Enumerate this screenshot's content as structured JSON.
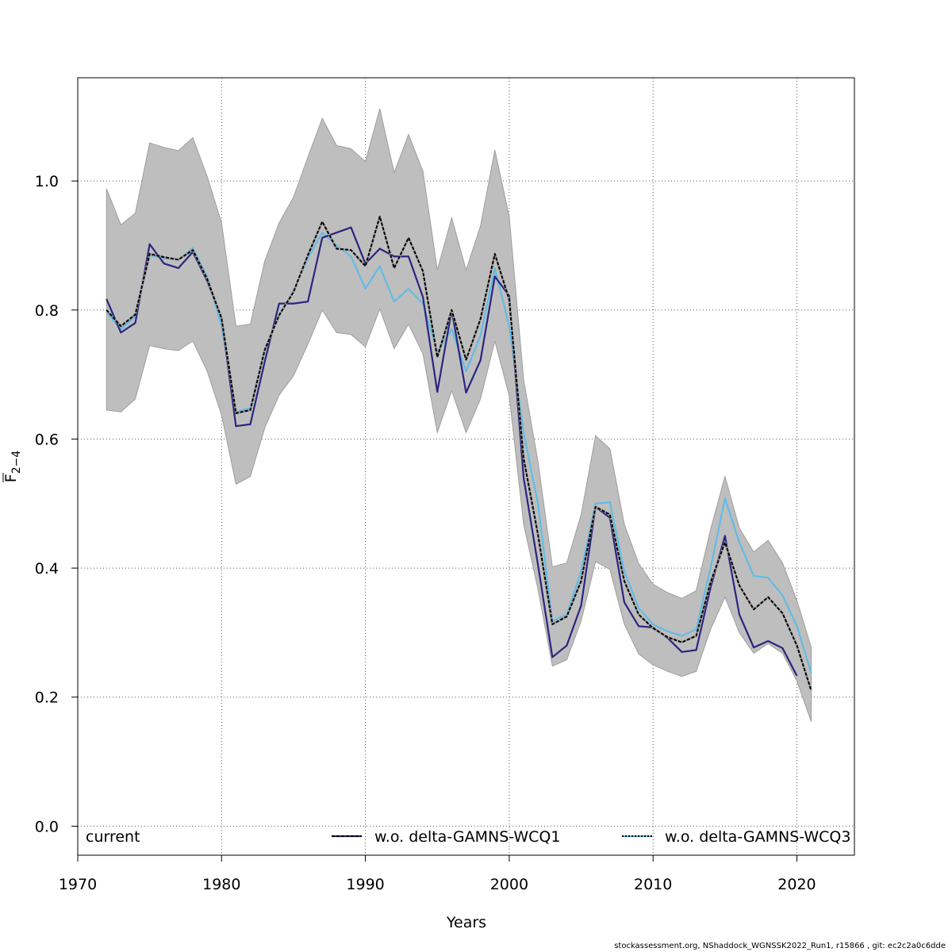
{
  "chart_data": {
    "type": "line",
    "xlabel": "Years",
    "ylabel_main": "F",
    "ylabel_sub": "2−4",
    "xlim": [
      1970,
      2024
    ],
    "ylim": [
      -0.045,
      1.16
    ],
    "xticks": [
      1970,
      1980,
      1990,
      2000,
      2010,
      2020
    ],
    "yticks": [
      0.0,
      0.2,
      0.4,
      0.6,
      0.8,
      1.0
    ],
    "ytick_labels": [
      "0.0",
      "0.2",
      "0.4",
      "0.6",
      "0.8",
      "1.0"
    ],
    "grid": true,
    "legend_position": "bottom",
    "years": [
      1972,
      1973,
      1974,
      1975,
      1976,
      1977,
      1978,
      1979,
      1980,
      1981,
      1982,
      1983,
      1984,
      1985,
      1986,
      1987,
      1988,
      1989,
      1990,
      1991,
      1992,
      1993,
      1994,
      1995,
      1996,
      1997,
      1998,
      1999,
      2000,
      2001,
      2002,
      2003,
      2004,
      2005,
      2006,
      2007,
      2008,
      2009,
      2010,
      2011,
      2012,
      2013,
      2014,
      2015,
      2016,
      2017,
      2018,
      2019,
      2020,
      2021
    ],
    "band": {
      "color": "#bebebe",
      "upper": [
        0.988,
        0.932,
        0.95,
        1.059,
        1.052,
        1.047,
        1.067,
        1.007,
        0.935,
        0.775,
        0.778,
        0.876,
        0.935,
        0.975,
        1.037,
        1.097,
        1.055,
        1.05,
        1.03,
        1.112,
        1.013,
        1.072,
        1.015,
        0.862,
        0.943,
        0.862,
        0.93,
        1.048,
        0.945,
        0.692,
        0.565,
        0.402,
        0.408,
        0.483,
        0.605,
        0.585,
        0.468,
        0.407,
        0.375,
        0.362,
        0.353,
        0.365,
        0.46,
        0.542,
        0.462,
        0.425,
        0.443,
        0.408,
        0.35,
        0.277
      ],
      "lower": [
        0.645,
        0.642,
        0.662,
        0.745,
        0.74,
        0.737,
        0.752,
        0.705,
        0.637,
        0.53,
        0.542,
        0.617,
        0.668,
        0.698,
        0.747,
        0.8,
        0.765,
        0.762,
        0.743,
        0.802,
        0.74,
        0.778,
        0.732,
        0.61,
        0.675,
        0.61,
        0.662,
        0.752,
        0.667,
        0.468,
        0.367,
        0.248,
        0.258,
        0.318,
        0.41,
        0.398,
        0.313,
        0.267,
        0.25,
        0.24,
        0.232,
        0.24,
        0.305,
        0.355,
        0.3,
        0.268,
        0.283,
        0.268,
        0.225,
        0.162
      ]
    },
    "series": [
      {
        "name": "current",
        "color": "#000000",
        "dashed": false,
        "values": [
          0.8,
          0.775,
          0.793,
          0.887,
          0.882,
          0.878,
          0.893,
          0.848,
          0.787,
          0.64,
          0.645,
          0.738,
          0.792,
          0.828,
          0.885,
          0.937,
          0.895,
          0.893,
          0.868,
          0.945,
          0.865,
          0.912,
          0.86,
          0.727,
          0.8,
          0.723,
          0.786,
          0.887,
          0.816,
          0.57,
          0.452,
          0.313,
          0.325,
          0.38,
          0.495,
          0.483,
          0.38,
          0.328,
          0.307,
          0.293,
          0.285,
          0.295,
          0.378,
          0.44,
          0.373,
          0.336,
          0.355,
          0.33,
          0.28,
          0.21
        ]
      },
      {
        "name": "w.o. delta-GAMNS-WCQ1",
        "color": "#2b2580",
        "dashed": false,
        "values": [
          0.817,
          0.765,
          0.78,
          0.902,
          0.872,
          0.865,
          0.89,
          0.845,
          0.788,
          0.62,
          0.623,
          0.72,
          0.81,
          0.81,
          0.813,
          0.912,
          0.92,
          0.928,
          0.872,
          0.895,
          0.883,
          0.883,
          0.82,
          0.673,
          0.8,
          0.672,
          0.722,
          0.852,
          0.822,
          0.54,
          0.405,
          0.262,
          0.28,
          0.342,
          0.495,
          0.478,
          0.347,
          0.31,
          0.308,
          0.292,
          0.27,
          0.273,
          0.37,
          0.45,
          0.328,
          0.277,
          0.287,
          0.276,
          0.233,
          null
        ]
      },
      {
        "name": "w.o. delta-GAMNS-WCQ3",
        "color": "#5cbbe8",
        "dashed": false,
        "values": [
          0.797,
          0.77,
          0.79,
          0.885,
          0.88,
          0.878,
          0.896,
          0.852,
          0.775,
          0.642,
          0.648,
          0.74,
          0.79,
          0.83,
          0.88,
          0.92,
          0.9,
          0.883,
          0.833,
          0.868,
          0.813,
          0.833,
          0.81,
          0.735,
          0.77,
          0.705,
          0.76,
          0.865,
          0.775,
          0.61,
          0.5,
          0.318,
          0.328,
          0.395,
          0.5,
          0.502,
          0.395,
          0.338,
          0.313,
          0.302,
          0.295,
          0.305,
          0.4,
          0.508,
          0.44,
          0.388,
          0.385,
          0.358,
          0.31,
          0.237
        ]
      }
    ],
    "legend": [
      {
        "label": "current",
        "swatch": "none"
      },
      {
        "label": "w.o. delta-GAMNS-WCQ1",
        "swatch": "dashed",
        "fg": "#2b2580",
        "bg": "#000000"
      },
      {
        "label": "w.o. delta-GAMNS-WCQ3",
        "swatch": "dotted",
        "fg": "#5cbbe8",
        "bg": "#000000"
      }
    ]
  },
  "footer": "stockassessment.org, NShaddock_WGNSSK2022_Run1, r15866 , git: ec2c2a0c6dde"
}
